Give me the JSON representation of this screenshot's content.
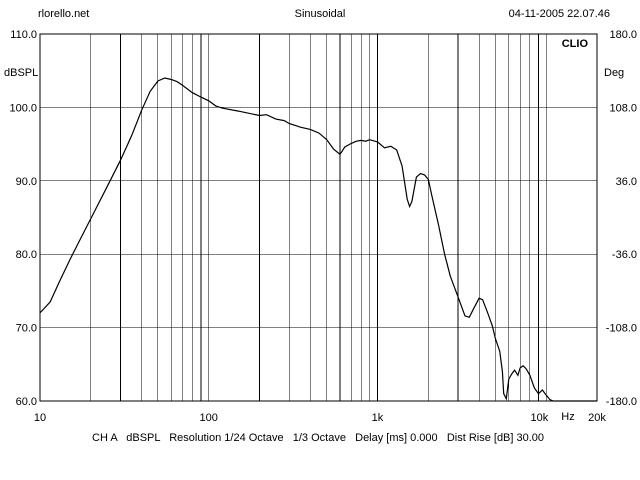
{
  "header": {
    "left": "rlorello.net",
    "center": "Sinusoidal",
    "right": "04-11-2005 22.07.46"
  },
  "footer": {
    "text": "CH A   dBSPL   Resolution 1/24 Octave   1/3 Octave   Delay [ms] 0.000   Dist Rise [dB] 30.00"
  },
  "chart_data": {
    "type": "line",
    "title": "",
    "xlabel": "Hz",
    "ylabel": "dBSPL",
    "ylabel_right": "Deg",
    "corner_label": "CLIO",
    "x_scale": "log",
    "xlim": [
      10,
      20000
    ],
    "ylim": [
      60,
      110
    ],
    "y2lim": [
      -180,
      180
    ],
    "grid": true,
    "x_ticks": [
      {
        "value": 10,
        "label": "10"
      },
      {
        "value": 100,
        "label": "100"
      },
      {
        "value": 1000,
        "label": "1k"
      },
      {
        "value": 10000,
        "label": "10k"
      },
      {
        "value": 20000,
        "label": "20k"
      }
    ],
    "y_ticks": [
      {
        "value": 110,
        "label": "110.0"
      },
      {
        "value": 100,
        "label": "100.0"
      },
      {
        "value": 90,
        "label": "90.0"
      },
      {
        "value": 80,
        "label": "80.0"
      },
      {
        "value": 70,
        "label": "70.0"
      },
      {
        "value": 60,
        "label": "60.0"
      }
    ],
    "y2_ticks": [
      {
        "value": 180,
        "label": "180.0"
      },
      {
        "value": 108,
        "label": "108.0"
      },
      {
        "value": 36,
        "label": "36.0"
      },
      {
        "value": -36,
        "label": "-36.0"
      },
      {
        "value": -108,
        "label": "-108.0"
      },
      {
        "value": -180,
        "label": "-180.0"
      }
    ],
    "series": [
      {
        "name": "",
        "x": [
          10,
          11.5,
          13,
          15,
          18,
          21,
          25,
          30,
          35,
          40,
          45,
          50,
          55,
          60,
          65,
          70,
          80,
          90,
          100,
          110,
          120,
          150,
          200,
          220,
          250,
          280,
          300,
          350,
          400,
          450,
          500,
          550,
          600,
          640,
          700,
          750,
          800,
          850,
          900,
          1000,
          1100,
          1200,
          1300,
          1400,
          1500,
          1550,
          1600,
          1700,
          1800,
          1900,
          2000,
          2100,
          2300,
          2500,
          2700,
          3000,
          3300,
          3500,
          3700,
          4000,
          4200,
          4500,
          4800,
          5000,
          5300,
          5500,
          5600,
          5800,
          6000,
          6300,
          6500,
          6800,
          7000,
          7300,
          7600,
          8000,
          8500,
          9000,
          9500,
          10000,
          10500,
          11000,
          12000,
          15000,
          20000
        ],
        "values": [
          72.0,
          73.5,
          76.2,
          79.2,
          82.8,
          85.8,
          89.2,
          92.8,
          96.2,
          99.6,
          102.2,
          103.6,
          104.0,
          103.8,
          103.5,
          103.0,
          102.0,
          101.4,
          100.9,
          100.2,
          99.9,
          99.5,
          98.9,
          99.0,
          98.4,
          98.2,
          97.8,
          97.3,
          97.0,
          96.5,
          95.6,
          94.3,
          93.6,
          94.6,
          95.1,
          95.4,
          95.5,
          95.4,
          95.6,
          95.3,
          94.5,
          94.7,
          94.2,
          92.0,
          87.5,
          86.5,
          87.2,
          90.5,
          91.0,
          90.8,
          90.2,
          88.0,
          84.0,
          80.0,
          77.0,
          74.2,
          71.6,
          71.4,
          72.5,
          74.0,
          73.8,
          72.0,
          70.2,
          68.5,
          66.8,
          64.0,
          61.0,
          60.3,
          63.0,
          63.8,
          64.2,
          63.5,
          64.5,
          64.8,
          64.4,
          63.5,
          61.8,
          61.0,
          61.5,
          60.8,
          60.2,
          60.0,
          60.0,
          60.0,
          60.0
        ]
      }
    ]
  }
}
